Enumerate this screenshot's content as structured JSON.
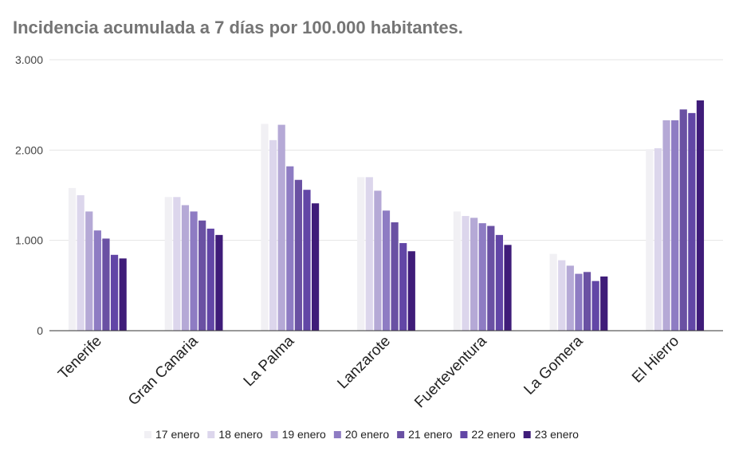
{
  "chart_data": {
    "type": "bar",
    "title": "Incidencia acumulada a 7 días por 100.000 habitantes.",
    "xlabel": "",
    "ylabel": "",
    "ylim": [
      0,
      3000
    ],
    "yticks": [
      0,
      1000,
      2000,
      3000
    ],
    "ytick_labels": [
      "0",
      "1.000",
      "2.000",
      "3.000"
    ],
    "grid": true,
    "legend_position": "bottom",
    "categories": [
      "Tenerife",
      "Gran Canaria",
      "La Palma",
      "Lanzarote",
      "Fuerteventura",
      "La Gomera",
      "El Hierro"
    ],
    "series": [
      {
        "name": "17 enero",
        "color": "#f1f0f4",
        "values": [
          1580,
          1480,
          2290,
          1700,
          1320,
          850,
          2010
        ]
      },
      {
        "name": "18 enero",
        "color": "#dcd6ec",
        "values": [
          1500,
          1480,
          2110,
          1700,
          1270,
          780,
          2020
        ]
      },
      {
        "name": "19 enero",
        "color": "#b5a9d6",
        "values": [
          1320,
          1390,
          2280,
          1550,
          1250,
          720,
          2330
        ]
      },
      {
        "name": "20 enero",
        "color": "#8e7cc3",
        "values": [
          1110,
          1320,
          1820,
          1330,
          1190,
          630,
          2330
        ]
      },
      {
        "name": "21 enero",
        "color": "#6a51a3",
        "values": [
          1020,
          1220,
          1670,
          1200,
          1160,
          650,
          2450
        ]
      },
      {
        "name": "22 enero",
        "color": "#6246a6",
        "values": [
          840,
          1130,
          1560,
          970,
          1060,
          550,
          2410
        ]
      },
      {
        "name": "23 enero",
        "color": "#3f1c79",
        "values": [
          800,
          1060,
          1410,
          880,
          950,
          600,
          2550
        ]
      }
    ]
  }
}
